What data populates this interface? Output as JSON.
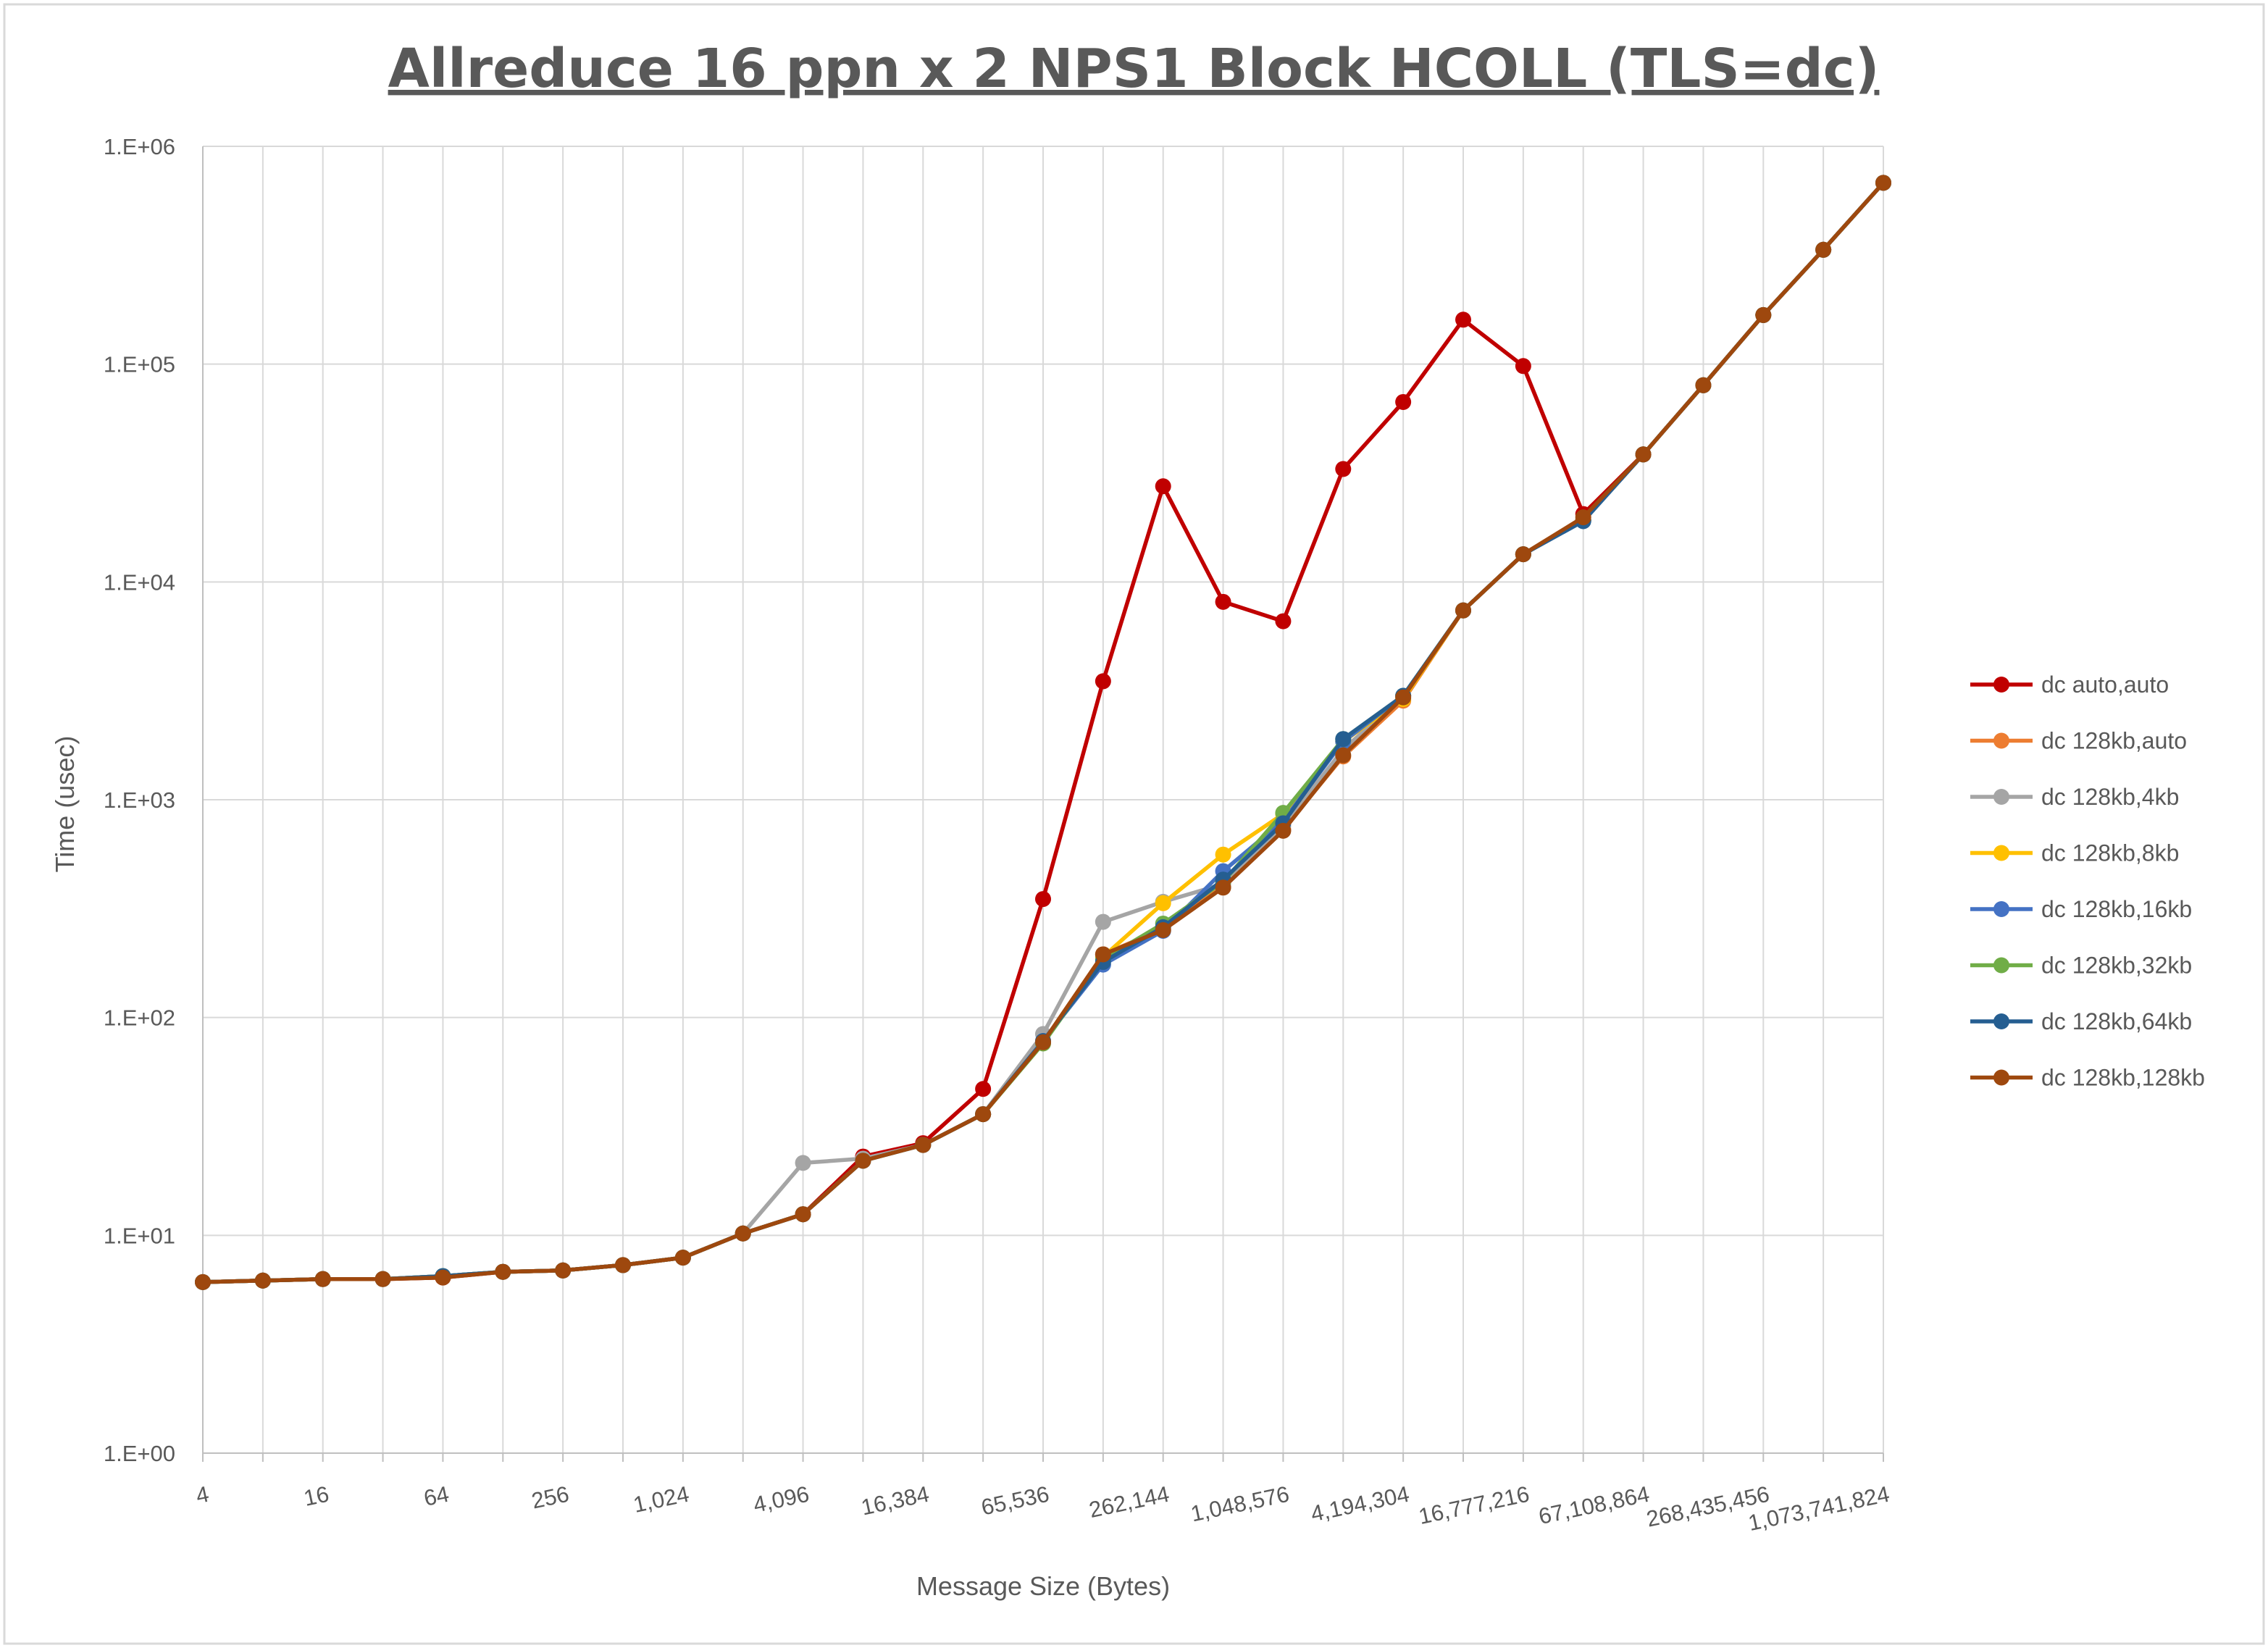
{
  "chart_data": {
    "type": "line",
    "title": "Allreduce 16 ppn x 2 NPS1 Block HCOLL (TLS=dc)",
    "xlabel": "Message Size (Bytes)",
    "ylabel": "Time (usec)",
    "x_scale": "log2",
    "y_scale": "log10",
    "ylim": [
      1,
      1000000
    ],
    "grid": true,
    "legend_position": "right",
    "y_tick_labels": [
      "1.E+00",
      "1.E+01",
      "1.E+02",
      "1.E+03",
      "1.E+04",
      "1.E+05",
      "1.E+06"
    ],
    "x_tick_labels": [
      "4",
      "16",
      "64",
      "256",
      "1,024",
      "4,096",
      "16,384",
      "65,536",
      "262,144",
      "1,048,576",
      "4,194,304",
      "16,777,216",
      "67,108,864",
      "268,435,456",
      "1,073,741,824"
    ],
    "x": [
      4,
      8,
      16,
      32,
      64,
      128,
      256,
      512,
      1024,
      2048,
      4096,
      8192,
      16384,
      32768,
      65536,
      131072,
      262144,
      524288,
      1048576,
      2097152,
      4194304,
      8388608,
      16777216,
      33554432,
      67108864,
      134217728,
      268435456,
      536870912,
      1073741824
    ],
    "series": [
      {
        "name": "dc auto,auto",
        "color": "#C00000",
        "values": [
          6.1,
          6.2,
          6.3,
          6.3,
          6.4,
          6.8,
          6.9,
          7.3,
          7.9,
          10.2,
          12.5,
          23,
          26.5,
          47,
          350,
          3500,
          27500,
          8100,
          6600,
          33000,
          67000,
          160000,
          98000,
          20500,
          38500,
          null,
          null,
          null,
          null
        ]
      },
      {
        "name": "dc 128kb,auto",
        "color": "#ED7D31",
        "values": [
          6.1,
          6.2,
          6.3,
          6.3,
          6.5,
          6.8,
          6.9,
          7.3,
          7.9,
          10.2,
          12.5,
          22,
          26,
          36,
          77,
          195,
          255,
          400,
          730,
          1580,
          2850,
          7400,
          13400,
          19200,
          38500,
          80000,
          168000,
          335000,
          680000
        ]
      },
      {
        "name": "dc 128kb,4kb",
        "color": "#A5A5A5",
        "values": [
          6.1,
          6.2,
          6.3,
          6.3,
          6.5,
          6.8,
          6.9,
          7.3,
          7.9,
          10.2,
          21.5,
          22.5,
          26,
          36,
          84,
          275,
          340,
          410,
          760,
          1700,
          3000,
          7400,
          13400,
          19200,
          38500,
          80000,
          168000,
          335000,
          680000
        ]
      },
      {
        "name": "dc 128kb,8kb",
        "color": "#FFC000",
        "values": [
          6.1,
          6.2,
          6.3,
          6.3,
          6.5,
          6.8,
          6.9,
          7.3,
          7.9,
          10.2,
          12.5,
          22,
          26,
          36,
          77,
          190,
          335,
          560,
          860,
          1850,
          2900,
          7400,
          13400,
          19200,
          38500,
          80000,
          168000,
          335000,
          680000
        ]
      },
      {
        "name": "dc 128kb,16kb",
        "color": "#4472C4",
        "values": [
          6.1,
          6.2,
          6.3,
          6.3,
          6.5,
          6.8,
          6.9,
          7.3,
          7.9,
          10.2,
          12.5,
          22,
          26,
          36,
          78,
          175,
          250,
          470,
          800,
          1850,
          3000,
          7400,
          13400,
          19200,
          38500,
          80000,
          168000,
          335000,
          680000
        ]
      },
      {
        "name": "dc 128kb,32kb",
        "color": "#70AD47",
        "values": [
          6.1,
          6.2,
          6.3,
          6.3,
          6.5,
          6.8,
          6.9,
          7.3,
          7.9,
          10.2,
          12.5,
          22,
          26,
          36,
          76,
          185,
          270,
          420,
          870,
          1900,
          3000,
          7400,
          13400,
          19200,
          38500,
          80000,
          168000,
          335000,
          680000
        ]
      },
      {
        "name": "dc 128kb,64kb",
        "color": "#255E91",
        "values": [
          6.1,
          6.2,
          6.3,
          6.3,
          6.5,
          6.8,
          6.9,
          7.3,
          7.9,
          10.2,
          12.5,
          22,
          26,
          36,
          78,
          180,
          260,
          430,
          780,
          1900,
          3000,
          7400,
          13400,
          19000,
          38500,
          80000,
          168000,
          335000,
          680000
        ]
      },
      {
        "name": "dc 128kb,128kb",
        "color": "#9E480E",
        "values": [
          6.1,
          6.2,
          6.3,
          6.3,
          6.4,
          6.8,
          6.9,
          7.3,
          7.9,
          10.2,
          12.5,
          22,
          26,
          36,
          77,
          195,
          252,
          395,
          720,
          1600,
          2950,
          7400,
          13400,
          19800,
          38500,
          80000,
          168000,
          335000,
          680000
        ]
      }
    ]
  }
}
